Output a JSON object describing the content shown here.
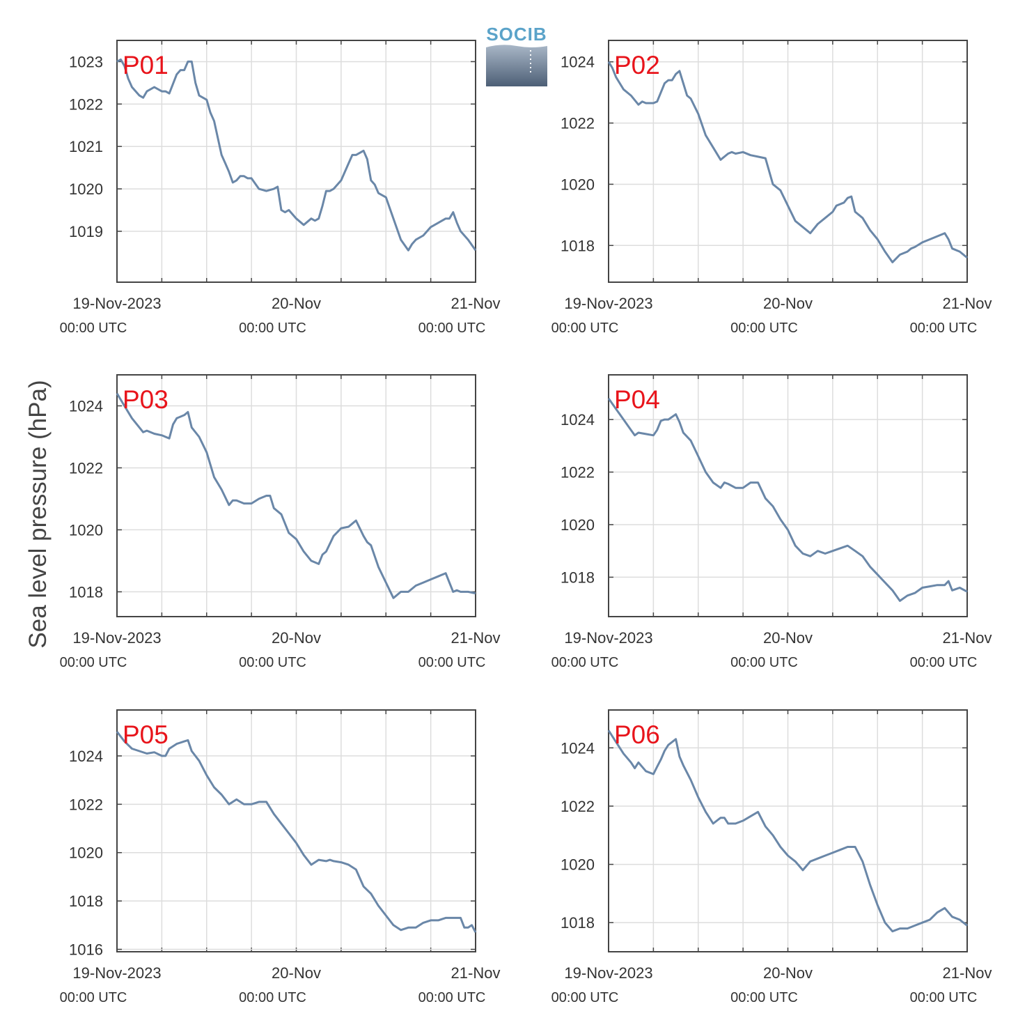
{
  "ylabel": "Sea level pressure (hPa)",
  "logo": {
    "text": "SOCIB"
  },
  "colors": {
    "line": "#6a87a8",
    "label": "#e8141b",
    "grid": "#dddddd",
    "frame": "#444444"
  },
  "chart_data": [
    {
      "type": "line",
      "name": "P01",
      "ylim": [
        1017.8,
        1023.5
      ],
      "yticks": [
        1019,
        1020,
        1021,
        1022,
        1023
      ],
      "xlim": [
        0,
        48
      ],
      "xticks": [
        {
          "x": 0,
          "label": "19-Nov-2023",
          "sub": "00:00 UTC"
        },
        {
          "x": 24,
          "label": "20-Nov",
          "sub": "00:00 UTC"
        },
        {
          "x": 48,
          "label": "21-Nov",
          "sub": "00:00 UTC"
        }
      ],
      "x": [
        0,
        0.5,
        1,
        1.5,
        2,
        3,
        3.5,
        4,
        5,
        6,
        6.5,
        7,
        8,
        8.5,
        9,
        9.5,
        10,
        10.5,
        11,
        12,
        12.5,
        13,
        14,
        14.5,
        15,
        15.5,
        16,
        16.5,
        17,
        17.5,
        18,
        19,
        20,
        21,
        21.5,
        22,
        22.5,
        23,
        24,
        25,
        26,
        26.5,
        27,
        27.5,
        28,
        28.5,
        29,
        30,
        31,
        31.5,
        32,
        33,
        33.5,
        34,
        34.5,
        35,
        36,
        37,
        38,
        39,
        39.5,
        40,
        41,
        42,
        43,
        44,
        44.5,
        45,
        45.5,
        46,
        46.5,
        47,
        48
      ],
      "y": [
        1023.0,
        1023.05,
        1022.9,
        1022.6,
        1022.4,
        1022.2,
        1022.15,
        1022.3,
        1022.4,
        1022.3,
        1022.3,
        1022.25,
        1022.7,
        1022.8,
        1022.8,
        1023.0,
        1023.0,
        1022.5,
        1022.2,
        1022.1,
        1021.8,
        1021.6,
        1020.8,
        1020.6,
        1020.4,
        1020.15,
        1020.2,
        1020.3,
        1020.3,
        1020.25,
        1020.25,
        1020.0,
        1019.95,
        1020.0,
        1020.05,
        1019.5,
        1019.45,
        1019.5,
        1019.3,
        1019.15,
        1019.3,
        1019.25,
        1019.3,
        1019.6,
        1019.95,
        1019.95,
        1020.0,
        1020.2,
        1020.6,
        1020.8,
        1020.8,
        1020.9,
        1020.7,
        1020.2,
        1020.1,
        1019.9,
        1019.8,
        1019.3,
        1018.8,
        1018.55,
        1018.7,
        1018.8,
        1018.9,
        1019.1,
        1019.2,
        1019.3,
        1019.3,
        1019.45,
        1019.2,
        1019.0,
        1018.9,
        1018.8,
        1018.55
      ]
    },
    {
      "type": "line",
      "name": "P02",
      "ylim": [
        1016.8,
        1024.7
      ],
      "yticks": [
        1018,
        1020,
        1022,
        1024
      ],
      "xlim": [
        0,
        48
      ],
      "xticks": [
        {
          "x": 0,
          "label": "19-Nov-2023",
          "sub": "00:00 UTC"
        },
        {
          "x": 24,
          "label": "20-Nov",
          "sub": "00:00 UTC"
        },
        {
          "x": 48,
          "label": "21-Nov",
          "sub": "00:00 UTC"
        }
      ],
      "x": [
        0,
        0.5,
        1,
        2,
        3,
        4,
        4.5,
        5,
        6,
        6.5,
        7,
        7.5,
        8,
        8.5,
        9,
        9.5,
        10,
        10.5,
        11,
        12,
        13,
        14,
        15,
        16,
        16.5,
        17,
        18,
        19,
        20,
        21,
        22,
        22.5,
        23,
        24,
        25,
        26,
        27,
        28,
        29,
        30,
        30.5,
        31,
        31.5,
        32,
        32.5,
        33,
        34,
        35,
        36,
        37,
        38,
        39,
        40,
        40.5,
        41,
        42,
        43,
        44,
        45,
        45.5,
        46,
        47,
        48
      ],
      "y": [
        1024.0,
        1023.8,
        1023.5,
        1023.1,
        1022.9,
        1022.6,
        1022.7,
        1022.65,
        1022.65,
        1022.7,
        1023.0,
        1023.3,
        1023.4,
        1023.4,
        1023.6,
        1023.7,
        1023.3,
        1022.9,
        1022.8,
        1022.3,
        1021.6,
        1021.2,
        1020.8,
        1021.0,
        1021.05,
        1021.0,
        1021.05,
        1020.95,
        1020.9,
        1020.85,
        1020.0,
        1019.9,
        1019.8,
        1019.3,
        1018.8,
        1018.6,
        1018.4,
        1018.7,
        1018.9,
        1019.1,
        1019.3,
        1019.35,
        1019.4,
        1019.55,
        1019.6,
        1019.1,
        1018.9,
        1018.5,
        1018.2,
        1017.8,
        1017.45,
        1017.7,
        1017.8,
        1017.9,
        1017.95,
        1018.1,
        1018.2,
        1018.3,
        1018.4,
        1018.2,
        1017.9,
        1017.8,
        1017.6
      ]
    },
    {
      "type": "line",
      "name": "P03",
      "ylim": [
        1017.2,
        1025.0
      ],
      "yticks": [
        1018,
        1020,
        1022,
        1024
      ],
      "xlim": [
        0,
        48
      ],
      "xticks": [
        {
          "x": 0,
          "label": "19-Nov-2023",
          "sub": "00:00 UTC"
        },
        {
          "x": 24,
          "label": "20-Nov",
          "sub": "00:00 UTC"
        },
        {
          "x": 48,
          "label": "21-Nov",
          "sub": "00:00 UTC"
        }
      ],
      "x": [
        0,
        1,
        2,
        3,
        3.5,
        4,
        5,
        6,
        6.5,
        7,
        7.5,
        8,
        9,
        9.5,
        10,
        11,
        12,
        13,
        14,
        15,
        15.5,
        16,
        17,
        18,
        19,
        20,
        20.5,
        21,
        22,
        23,
        24,
        25,
        26,
        27,
        27.5,
        28,
        29,
        30,
        31,
        32,
        33,
        33.5,
        34,
        35,
        36,
        37,
        38,
        39,
        40,
        41,
        42,
        43,
        44,
        44.5,
        45,
        45.5,
        46,
        47,
        48
      ],
      "y": [
        1024.4,
        1024.0,
        1023.6,
        1023.3,
        1023.15,
        1023.2,
        1023.1,
        1023.05,
        1023.0,
        1022.95,
        1023.4,
        1023.6,
        1023.7,
        1023.8,
        1023.3,
        1023.0,
        1022.5,
        1021.7,
        1021.3,
        1020.8,
        1020.95,
        1020.95,
        1020.85,
        1020.85,
        1021.0,
        1021.1,
        1021.1,
        1020.7,
        1020.5,
        1019.9,
        1019.7,
        1019.3,
        1019.0,
        1018.9,
        1019.2,
        1019.3,
        1019.8,
        1020.05,
        1020.1,
        1020.3,
        1019.8,
        1019.6,
        1019.5,
        1018.8,
        1018.3,
        1017.8,
        1018.0,
        1018.0,
        1018.2,
        1018.3,
        1018.4,
        1018.5,
        1018.6,
        1018.3,
        1018.0,
        1018.05,
        1018.0,
        1018.0,
        1017.95
      ]
    },
    {
      "type": "line",
      "name": "P04",
      "ylim": [
        1016.5,
        1025.7
      ],
      "yticks": [
        1018,
        1020,
        1022,
        1024
      ],
      "xlim": [
        0,
        48
      ],
      "xticks": [
        {
          "x": 0,
          "label": "19-Nov-2023",
          "sub": "00:00 UTC"
        },
        {
          "x": 24,
          "label": "20-Nov",
          "sub": "00:00 UTC"
        },
        {
          "x": 48,
          "label": "21-Nov",
          "sub": "00:00 UTC"
        }
      ],
      "x": [
        0,
        1,
        2,
        3,
        3.5,
        4,
        5,
        6,
        6.5,
        7,
        7.5,
        8,
        9,
        9.5,
        10,
        11,
        12,
        13,
        14,
        15,
        15.5,
        16,
        17,
        18,
        19,
        20,
        21,
        22,
        23,
        24,
        25,
        26,
        27,
        28,
        29,
        30,
        31,
        32,
        33,
        34,
        35,
        36,
        37,
        38,
        39,
        40,
        41,
        42,
        43,
        44,
        45,
        45.5,
        46,
        46.5,
        47,
        48
      ],
      "y": [
        1024.8,
        1024.4,
        1024.0,
        1023.6,
        1023.4,
        1023.5,
        1023.45,
        1023.4,
        1023.6,
        1023.95,
        1024.0,
        1024.0,
        1024.2,
        1023.9,
        1023.5,
        1023.2,
        1022.6,
        1022.0,
        1021.6,
        1021.4,
        1021.6,
        1021.55,
        1021.4,
        1021.4,
        1021.6,
        1021.6,
        1021.0,
        1020.7,
        1020.2,
        1019.8,
        1019.2,
        1018.9,
        1018.8,
        1019.0,
        1018.9,
        1019.0,
        1019.1,
        1019.2,
        1019.0,
        1018.8,
        1018.4,
        1018.1,
        1017.8,
        1017.5,
        1017.1,
        1017.3,
        1017.4,
        1017.6,
        1017.65,
        1017.7,
        1017.7,
        1017.85,
        1017.5,
        1017.55,
        1017.6,
        1017.45
      ]
    },
    {
      "type": "line",
      "name": "P05",
      "ylim": [
        1015.9,
        1025.9
      ],
      "yticks": [
        1016,
        1018,
        1020,
        1022,
        1024
      ],
      "xlim": [
        0,
        48
      ],
      "xticks": [
        {
          "x": 0,
          "label": "19-Nov-2023",
          "sub": "00:00 UTC"
        },
        {
          "x": 24,
          "label": "20-Nov",
          "sub": "00:00 UTC"
        },
        {
          "x": 48,
          "label": "21-Nov",
          "sub": "00:00 UTC"
        }
      ],
      "x": [
        0,
        1,
        2,
        3,
        4,
        5,
        6,
        6.5,
        7,
        8,
        9,
        9.5,
        10,
        11,
        12,
        13,
        14,
        15,
        16,
        17,
        18,
        19,
        20,
        21,
        22,
        23,
        24,
        25,
        26,
        27,
        28,
        28.5,
        29,
        30,
        31,
        32,
        33,
        34,
        35,
        36,
        37,
        38,
        39,
        40,
        41,
        42,
        43,
        44,
        45,
        46,
        46.5,
        47,
        47.5,
        48
      ],
      "y": [
        1025.0,
        1024.6,
        1024.3,
        1024.2,
        1024.1,
        1024.15,
        1024.0,
        1024.0,
        1024.3,
        1024.5,
        1024.6,
        1024.65,
        1024.2,
        1023.8,
        1023.2,
        1022.7,
        1022.4,
        1022.0,
        1022.2,
        1022.0,
        1022.0,
        1022.1,
        1022.1,
        1021.6,
        1021.2,
        1020.8,
        1020.4,
        1019.9,
        1019.5,
        1019.7,
        1019.65,
        1019.7,
        1019.65,
        1019.6,
        1019.5,
        1019.3,
        1018.6,
        1018.3,
        1017.8,
        1017.4,
        1017.0,
        1016.8,
        1016.9,
        1016.9,
        1017.1,
        1017.2,
        1017.2,
        1017.3,
        1017.3,
        1017.3,
        1016.9,
        1016.9,
        1017.0,
        1016.7
      ]
    },
    {
      "type": "line",
      "name": "P06",
      "ylim": [
        1017.0,
        1025.3
      ],
      "yticks": [
        1018,
        1020,
        1022,
        1024
      ],
      "xlim": [
        0,
        48
      ],
      "xticks": [
        {
          "x": 0,
          "label": "19-Nov-2023",
          "sub": "00:00 UTC"
        },
        {
          "x": 24,
          "label": "20-Nov",
          "sub": "00:00 UTC"
        },
        {
          "x": 48,
          "label": "21-Nov",
          "sub": "00:00 UTC"
        }
      ],
      "x": [
        0,
        1,
        2,
        3,
        3.5,
        4,
        5,
        6,
        6.5,
        7,
        7.5,
        8,
        9,
        9.5,
        10,
        11,
        12,
        13,
        14,
        15,
        15.5,
        16,
        17,
        18,
        19,
        20,
        21,
        22,
        23,
        24,
        25,
        26,
        27,
        28,
        29,
        30,
        31,
        32,
        33,
        34,
        35,
        36,
        37,
        38,
        39,
        40,
        41,
        42,
        43,
        44,
        45,
        46,
        47,
        48
      ],
      "y": [
        1024.6,
        1024.2,
        1023.8,
        1023.5,
        1023.3,
        1023.5,
        1023.2,
        1023.1,
        1023.35,
        1023.6,
        1023.9,
        1024.1,
        1024.3,
        1023.7,
        1023.4,
        1022.9,
        1022.3,
        1021.8,
        1021.4,
        1021.6,
        1021.6,
        1021.4,
        1021.4,
        1021.5,
        1021.65,
        1021.8,
        1021.3,
        1021.0,
        1020.6,
        1020.3,
        1020.1,
        1019.8,
        1020.1,
        1020.2,
        1020.3,
        1020.4,
        1020.5,
        1020.6,
        1020.6,
        1020.1,
        1019.3,
        1018.6,
        1018.0,
        1017.7,
        1017.8,
        1017.8,
        1017.9,
        1018.0,
        1018.1,
        1018.35,
        1018.5,
        1018.2,
        1018.1,
        1017.9
      ]
    }
  ]
}
